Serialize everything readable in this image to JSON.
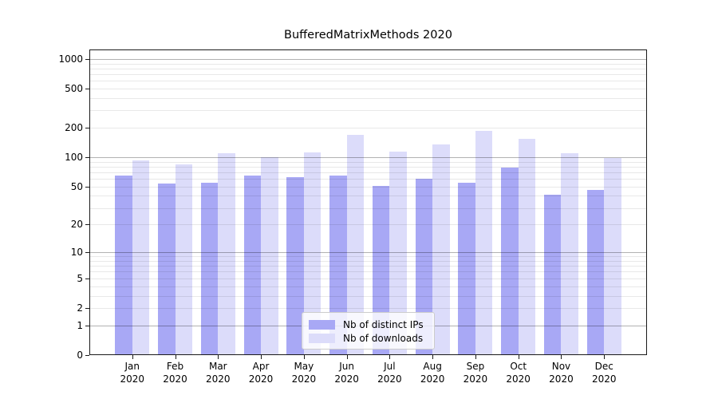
{
  "title": "BufferedMatrixMethods 2020",
  "chart_data": {
    "type": "bar",
    "title": "BufferedMatrixMethods 2020",
    "categories": [
      "Jan",
      "Feb",
      "Mar",
      "Apr",
      "May",
      "Jun",
      "Jul",
      "Aug",
      "Sep",
      "Oct",
      "Nov",
      "Dec"
    ],
    "x_tick_line2": "2020",
    "series": [
      {
        "name": "Nb of distinct IPs",
        "color": "#a8a8f5",
        "values": [
          65,
          54,
          55,
          65,
          62,
          65,
          51,
          60,
          55,
          78,
          41,
          46
        ]
      },
      {
        "name": "Nb of downloads",
        "color": "#dcdcfa",
        "values": [
          93,
          85,
          109,
          101,
          112,
          170,
          114,
          136,
          187,
          153,
          110,
          98
        ]
      }
    ],
    "y_ticks": [
      0,
      1,
      2,
      5,
      10,
      20,
      50,
      100,
      200,
      500,
      1000
    ],
    "y_scale": "log10(value+1)",
    "ylim": [
      0,
      1250
    ],
    "grid": "on",
    "grid_major_color": "rgba(0,0,0,0.30)",
    "grid_minor_color": "rgba(0,0,0,0.09)",
    "legend_position": "lower center",
    "legend_items": [
      "Nb of distinct IPs",
      "Nb of downloads"
    ]
  }
}
